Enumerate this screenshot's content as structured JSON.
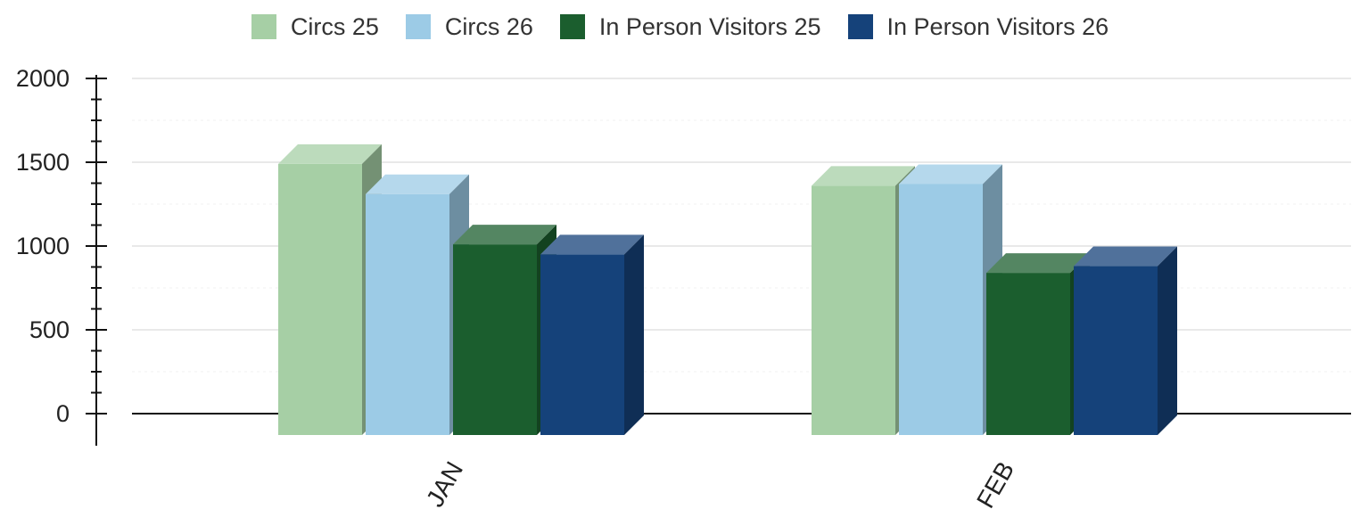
{
  "chart_data": {
    "type": "bar",
    "categories": [
      "JAN",
      "FEB"
    ],
    "series": [
      {
        "name": "Circs 25",
        "values": [
          1490,
          1360
        ],
        "color": "#a6cfa5"
      },
      {
        "name": "Circs 26",
        "values": [
          1310,
          1370
        ],
        "color": "#9ccbe6"
      },
      {
        "name": "In Person Visitors 25",
        "values": [
          1010,
          840
        ],
        "color": "#1b5e2e"
      },
      {
        "name": "In Person Visitors 26",
        "values": [
          950,
          880
        ],
        "color": "#15427a"
      }
    ],
    "y_ticks": [
      0,
      500,
      1000,
      1500,
      2000
    ],
    "ylim": [
      0,
      2000
    ],
    "title": "",
    "xlabel": "",
    "ylabel": "",
    "legend_position": "top-center",
    "grid": true,
    "style": "3d"
  }
}
